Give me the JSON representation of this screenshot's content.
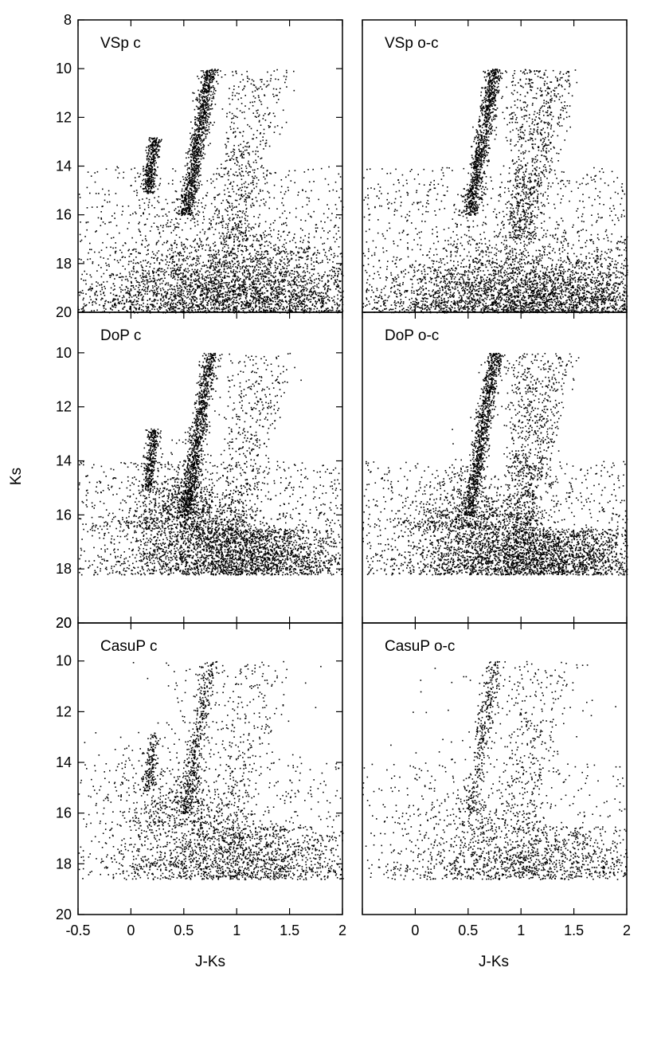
{
  "figure": {
    "ylabel": "Ks",
    "xlabel": "J-Ks",
    "panel_rows": 3,
    "panel_cols": 2,
    "point_color": "#000000"
  },
  "chart_data": [
    {
      "type": "scatter",
      "panel": "VSp c",
      "row": 0,
      "col": 0,
      "xlim": [
        -0.5,
        2
      ],
      "ylim": [
        20,
        8
      ],
      "y_inverted": true,
      "yticks": [
        "8",
        "10",
        "12",
        "14",
        "16",
        "18",
        "20"
      ],
      "xticks": [],
      "features": {
        "red_giant_branch_tip": [
          0.75,
          9.0
        ],
        "turnoff": [
          0.5,
          15.5
        ],
        "sequence_offset": [
          0.2,
          13.2
        ],
        "n_points_estimate": 14000
      }
    },
    {
      "type": "scatter",
      "panel": "VSp o-c",
      "row": 0,
      "col": 1,
      "xlim": [
        -0.5,
        2
      ],
      "ylim": [
        20,
        8
      ],
      "y_inverted": true,
      "yticks": [],
      "xticks": [],
      "features": {
        "red_giant_branch_tip": [
          0.8,
          9.6
        ],
        "turnoff": [
          0.55,
          16.0
        ],
        "n_points_estimate": 10000
      }
    },
    {
      "type": "scatter",
      "panel": "DoP c",
      "row": 1,
      "col": 0,
      "xlim": [
        -0.5,
        2
      ],
      "ylim": [
        20,
        8.5
      ],
      "y_inverted": true,
      "yticks": [
        "10",
        "12",
        "14",
        "16",
        "18",
        "20"
      ],
      "xticks": [],
      "features": {
        "red_giant_branch_tip": [
          0.7,
          10.1
        ],
        "turnoff": [
          0.5,
          16.0
        ],
        "n_points_estimate": 10000
      }
    },
    {
      "type": "scatter",
      "panel": "DoP o-c",
      "row": 1,
      "col": 1,
      "xlim": [
        -0.5,
        2
      ],
      "ylim": [
        20,
        8.5
      ],
      "y_inverted": true,
      "yticks": [],
      "xticks": [],
      "features": {
        "red_giant_branch_tip": [
          0.85,
          10.3
        ],
        "turnoff": [
          0.55,
          16.5
        ],
        "n_points_estimate": 7000
      }
    },
    {
      "type": "scatter",
      "panel": "CasuP c",
      "row": 2,
      "col": 0,
      "xlim": [
        -0.5,
        2
      ],
      "ylim": [
        20,
        8.5
      ],
      "y_inverted": true,
      "yticks": [
        "10",
        "12",
        "14",
        "16",
        "18",
        "20"
      ],
      "yticks_top": "20",
      "xticks": [
        "-0.5",
        "0",
        "0.5",
        "1",
        "1.5",
        "2"
      ],
      "features": {
        "red_giant_branch_tip": [
          0.9,
          8.5
        ],
        "turnoff": [
          0.5,
          15.5
        ],
        "n_points_estimate": 3500
      }
    },
    {
      "type": "scatter",
      "panel": "CasuP o-c",
      "row": 2,
      "col": 1,
      "xlim": [
        -0.5,
        2
      ],
      "ylim": [
        20,
        8.5
      ],
      "y_inverted": true,
      "yticks": [],
      "xticks": [
        "0",
        "0.5",
        "1",
        "1.5",
        "2"
      ],
      "features": {
        "red_giant_branch_tip": [
          0.8,
          10.0
        ],
        "turnoff": [
          0.5,
          16.5
        ],
        "n_points_estimate": 2500
      }
    }
  ]
}
